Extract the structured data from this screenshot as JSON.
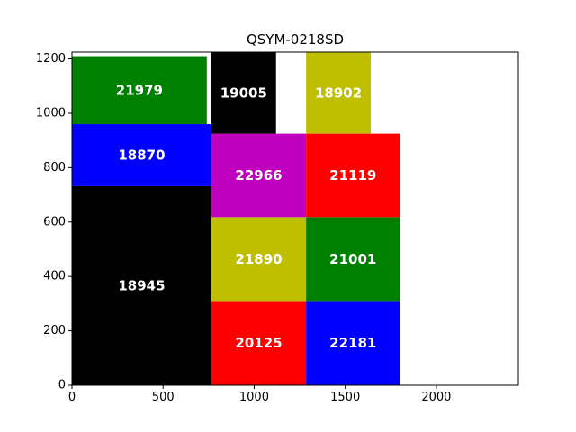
{
  "chart_data": {
    "type": "bar",
    "title": "QSYM-0218SD",
    "xlabel": "",
    "ylabel": "",
    "xlim": [
      0,
      2450
    ],
    "ylim": [
      0,
      1225
    ],
    "x_ticks": [
      0,
      500,
      1000,
      1500,
      2000
    ],
    "y_ticks": [
      0,
      200,
      400,
      600,
      800,
      1000,
      1200
    ],
    "grid": false,
    "legend": "none",
    "rectangles": [
      {
        "label": "18945",
        "x0": 0,
        "x1": 765,
        "y0": 0,
        "y1": 732,
        "color": "#000000"
      },
      {
        "label": "18870",
        "x0": 0,
        "x1": 765,
        "y0": 732,
        "y1": 960,
        "color": "#0000ff"
      },
      {
        "label": "21979",
        "x0": 0,
        "x1": 740,
        "y0": 960,
        "y1": 1210,
        "color": "#008000"
      },
      {
        "label": "20125",
        "x0": 765,
        "x1": 1285,
        "y0": 0,
        "y1": 310,
        "color": "#ff0000"
      },
      {
        "label": "21890",
        "x0": 765,
        "x1": 1285,
        "y0": 310,
        "y1": 618,
        "color": "#bfbf00"
      },
      {
        "label": "22966",
        "x0": 765,
        "x1": 1285,
        "y0": 618,
        "y1": 925,
        "color": "#bf00bf"
      },
      {
        "label": "19005",
        "x0": 765,
        "x1": 1120,
        "y0": 925,
        "y1": 1225,
        "color": "#000000"
      },
      {
        "label": "22181",
        "x0": 1285,
        "x1": 1800,
        "y0": 0,
        "y1": 310,
        "color": "#0000ff"
      },
      {
        "label": "21001",
        "x0": 1285,
        "x1": 1800,
        "y0": 310,
        "y1": 618,
        "color": "#008000"
      },
      {
        "label": "21119",
        "x0": 1285,
        "x1": 1800,
        "y0": 618,
        "y1": 925,
        "color": "#ff0000"
      },
      {
        "label": "18902",
        "x0": 1285,
        "x1": 1640,
        "y0": 925,
        "y1": 1225,
        "color": "#bfbf00"
      }
    ]
  }
}
